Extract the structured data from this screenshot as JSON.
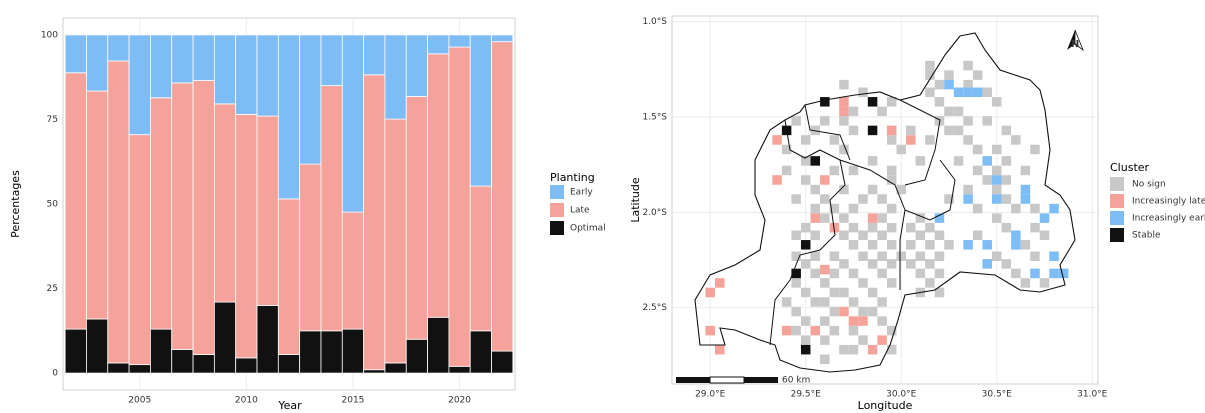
{
  "chart_data": [
    {
      "type": "bar",
      "stacked": true,
      "x_label": "Year",
      "y_label": "Percentages",
      "legend_title": "Planting",
      "x": [
        2002,
        2003,
        2004,
        2005,
        2006,
        2007,
        2008,
        2009,
        2010,
        2011,
        2012,
        2013,
        2014,
        2015,
        2016,
        2017,
        2018,
        2019,
        2020,
        2021,
        2022
      ],
      "series": [
        {
          "name": "Early",
          "color": "#7dbcf5",
          "values": [
            11.2,
            16.6,
            7.7,
            29.5,
            18.6,
            14.2,
            13.5,
            20.4,
            23.5,
            24,
            48.5,
            38.2,
            15,
            52.4,
            11.8,
            24.9,
            18.2,
            5.6,
            3.6,
            44.7,
            2
          ]
        },
        {
          "name": "Late",
          "color": "#f5a29a",
          "values": [
            75.8,
            67.4,
            89.3,
            68,
            68.4,
            78.8,
            81,
            58.6,
            72,
            56,
            46,
            49.3,
            72.5,
            34.6,
            87.2,
            72.1,
            71.8,
            77.9,
            94.4,
            42.8,
            91.5
          ]
        },
        {
          "name": "Optimal",
          "color": "#111111",
          "values": [
            13,
            16,
            3,
            2.5,
            13,
            7,
            5.5,
            21,
            4.5,
            20,
            5.5,
            12.5,
            12.5,
            13,
            1,
            3,
            10,
            16.5,
            2,
            12.5,
            6.5
          ]
        }
      ],
      "xlim": [
        2001.4,
        2022.6
      ],
      "xticks": [
        2005,
        2010,
        2015,
        2020
      ],
      "ylim": [
        -5,
        105
      ],
      "yticks": [
        0,
        25,
        50,
        75,
        100
      ],
      "grid": true
    },
    {
      "type": "tile",
      "x_label": "Longitude",
      "y_label": "Latitude",
      "legend_title": "Cluster",
      "north_label": "N",
      "scale_label": "60 km",
      "xlim": [
        28.8,
        31.03
      ],
      "ylim": [
        -2.9,
        -0.97
      ],
      "xticks": [
        {
          "value": 29.0,
          "label": "29.0°E"
        },
        {
          "value": 29.5,
          "label": "29.5°E"
        },
        {
          "value": 30.0,
          "label": "30.0°E"
        },
        {
          "value": 30.5,
          "label": "30.5°E"
        },
        {
          "value": 31.0,
          "label": "31.0°E"
        }
      ],
      "yticks": [
        {
          "value": -1.0,
          "label": "1.0°S"
        },
        {
          "value": -1.5,
          "label": "1.5°S"
        },
        {
          "value": -2.0,
          "label": "2.0°S"
        },
        {
          "value": -2.5,
          "label": "2.5°S"
        }
      ],
      "grid": true,
      "series": [
        {
          "name": "No sign",
          "color": "#c8c8c8",
          "x": [
            30.15,
            30.35,
            30.15,
            30.25,
            30.4,
            29.7,
            30.2,
            30.35,
            29.8,
            30.15,
            30.45,
            29.95,
            30.2,
            30.5,
            29.75,
            29.9,
            30.25,
            30.3,
            29.45,
            29.6,
            29.7,
            30.2,
            30.35,
            30.45,
            29.55,
            29.75,
            30.05,
            30.25,
            30.3,
            30.55,
            29.5,
            29.65,
            29.95,
            30.15,
            30.35,
            30.6,
            29.4,
            29.7,
            30.0,
            30.4,
            30.5,
            30.7,
            29.5,
            29.85,
            30.1,
            30.3,
            30.55,
            29.4,
            29.65,
            29.75,
            29.95,
            30.4,
            30.5,
            30.65,
            29.5,
            29.95,
            30.45,
            30.55,
            29.55,
            29.7,
            29.85,
            30.0,
            30.35,
            30.5,
            29.45,
            29.6,
            29.8,
            29.9,
            30.25,
            30.55,
            29.55,
            29.65,
            29.75,
            29.95,
            30.4,
            30.6,
            30.7,
            29.6,
            29.7,
            29.9,
            30.1,
            30.5,
            29.5,
            29.75,
            29.85,
            29.95,
            30.05,
            30.15,
            30.55,
            30.7,
            29.45,
            29.55,
            29.7,
            29.8,
            29.9,
            30.1,
            30.2,
            30.4,
            30.75,
            29.75,
            29.85,
            29.95,
            30.05,
            30.15,
            30.25,
            30.65,
            29.45,
            29.55,
            29.65,
            29.8,
            29.9,
            30.0,
            30.1,
            30.2,
            30.5,
            30.7,
            29.5,
            29.7,
            29.85,
            29.95,
            30.05,
            30.15,
            30.55,
            29.55,
            29.65,
            29.75,
            29.9,
            30.1,
            30.2,
            30.6,
            29.45,
            29.6,
            29.8,
            29.95,
            30.15,
            30.65,
            30.75,
            29.5,
            29.65,
            29.7,
            29.85,
            30.1,
            30.2,
            29.4,
            29.55,
            29.6,
            29.75,
            29.9,
            29.45,
            29.65,
            29.8,
            29.85,
            29.5,
            29.6,
            29.9,
            29.45,
            29.65,
            29.75,
            29.95,
            29.5,
            29.6,
            29.8,
            29.7,
            29.75,
            29.95,
            29.6
          ],
          "y": [
            -1.23,
            -1.23,
            -1.28,
            -1.28,
            -1.28,
            -1.33,
            -1.33,
            -1.33,
            -1.37,
            -1.37,
            -1.37,
            -1.42,
            -1.42,
            -1.42,
            -1.47,
            -1.47,
            -1.47,
            -1.47,
            -1.52,
            -1.52,
            -1.52,
            -1.52,
            -1.52,
            -1.52,
            -1.57,
            -1.57,
            -1.57,
            -1.57,
            -1.57,
            -1.57,
            -1.62,
            -1.62,
            -1.62,
            -1.62,
            -1.62,
            -1.62,
            -1.67,
            -1.67,
            -1.67,
            -1.67,
            -1.67,
            -1.67,
            -1.73,
            -1.73,
            -1.73,
            -1.73,
            -1.73,
            -1.78,
            -1.78,
            -1.78,
            -1.78,
            -1.78,
            -1.78,
            -1.78,
            -1.83,
            -1.83,
            -1.83,
            -1.83,
            -1.88,
            -1.88,
            -1.88,
            -1.88,
            -1.88,
            -1.88,
            -1.93,
            -1.93,
            -1.93,
            -1.93,
            -1.93,
            -1.93,
            -1.98,
            -1.98,
            -1.98,
            -1.98,
            -1.98,
            -1.98,
            -1.98,
            -2.03,
            -2.03,
            -2.03,
            -2.03,
            -2.03,
            -2.08,
            -2.08,
            -2.08,
            -2.08,
            -2.08,
            -2.08,
            -2.08,
            -2.08,
            -2.12,
            -2.12,
            -2.12,
            -2.12,
            -2.12,
            -2.12,
            -2.12,
            -2.12,
            -2.12,
            -2.17,
            -2.17,
            -2.17,
            -2.17,
            -2.17,
            -2.17,
            -2.17,
            -2.23,
            -2.23,
            -2.23,
            -2.23,
            -2.23,
            -2.23,
            -2.23,
            -2.23,
            -2.23,
            -2.23,
            -2.27,
            -2.27,
            -2.27,
            -2.27,
            -2.27,
            -2.27,
            -2.27,
            -2.32,
            -2.32,
            -2.32,
            -2.32,
            -2.32,
            -2.32,
            -2.32,
            -2.37,
            -2.37,
            -2.37,
            -2.37,
            -2.37,
            -2.37,
            -2.37,
            -2.42,
            -2.42,
            -2.42,
            -2.42,
            -2.42,
            -2.42,
            -2.47,
            -2.47,
            -2.47,
            -2.47,
            -2.47,
            -2.52,
            -2.52,
            -2.52,
            -2.52,
            -2.57,
            -2.57,
            -2.57,
            -2.62,
            -2.62,
            -2.62,
            -2.62,
            -2.67,
            -2.67,
            -2.67,
            -2.72,
            -2.72,
            -2.72,
            -2.77
          ]
        },
        {
          "name": "Increasingly late",
          "color": "#f5a29a",
          "x": [
            29.7,
            29.7,
            29.95,
            30.05,
            29.35,
            29.35,
            29.6,
            29.55,
            29.85,
            29.65,
            29.6,
            29.05,
            29.0,
            29.0,
            29.05,
            29.7,
            29.75,
            29.8,
            29.55,
            29.4,
            29.9,
            29.85
          ],
          "y": [
            -1.42,
            -1.47,
            -1.57,
            -1.62,
            -1.62,
            -1.83,
            -1.83,
            -2.03,
            -2.03,
            -2.08,
            -2.3,
            -2.37,
            -2.42,
            -2.62,
            -2.72,
            -2.52,
            -2.57,
            -2.57,
            -2.62,
            -2.62,
            -2.67,
            -2.72
          ]
        },
        {
          "name": "Increasingly early",
          "color": "#7dbcf5",
          "x": [
            30.25,
            30.3,
            30.35,
            30.4,
            30.45,
            30.35,
            30.5,
            30.5,
            30.65,
            30.65,
            30.2,
            30.8,
            30.75,
            30.35,
            30.45,
            30.6,
            30.6,
            30.8,
            30.45,
            30.7,
            30.85,
            30.8
          ],
          "y": [
            -1.33,
            -1.37,
            -1.37,
            -1.37,
            -1.73,
            -1.93,
            -1.83,
            -1.93,
            -1.88,
            -1.93,
            -2.03,
            -1.98,
            -2.03,
            -2.17,
            -2.17,
            -2.12,
            -2.17,
            -2.23,
            -2.27,
            -2.32,
            -2.32,
            -2.32
          ]
        },
        {
          "name": "Stable",
          "color": "#111111",
          "x": [
            29.6,
            29.85,
            29.4,
            29.85,
            29.55,
            29.5,
            29.45,
            29.5
          ],
          "y": [
            -1.42,
            -1.42,
            -1.57,
            -1.57,
            -1.73,
            -2.17,
            -2.32,
            -2.72
          ]
        }
      ]
    }
  ]
}
